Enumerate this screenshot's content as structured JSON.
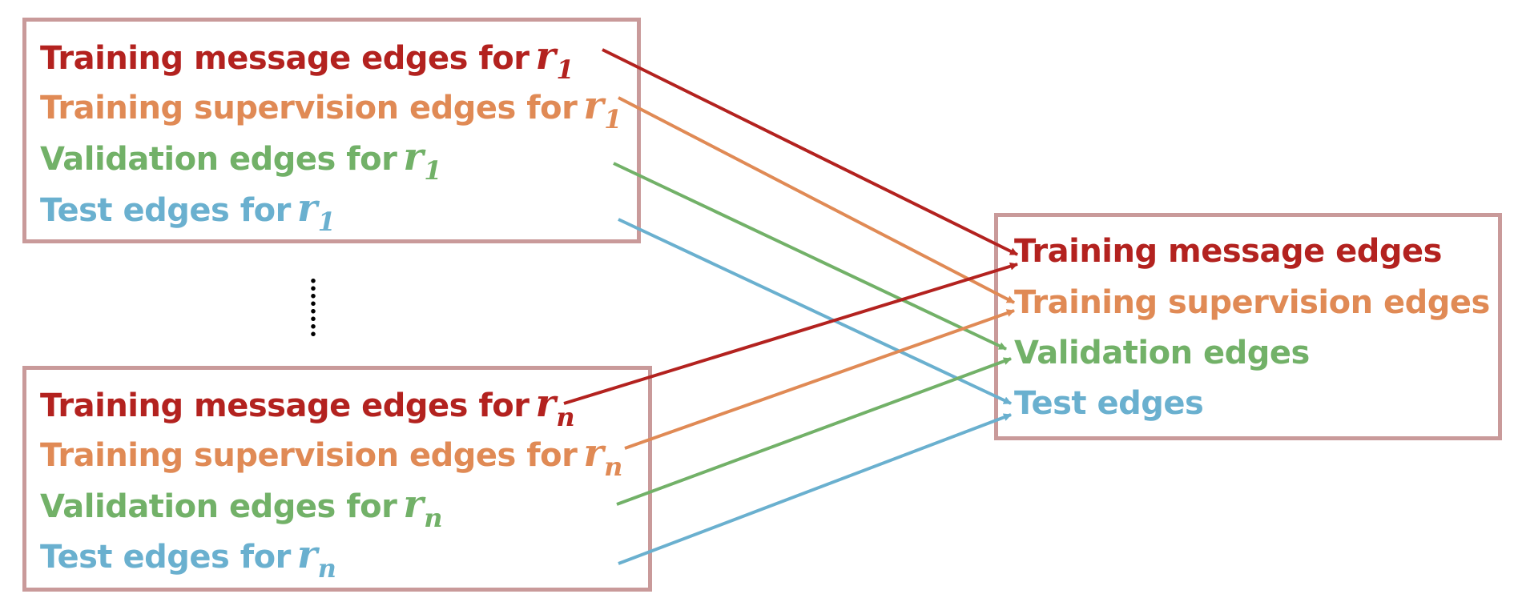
{
  "colors": {
    "message": "#b3221f",
    "supervision": "#e08a55",
    "validation": "#72b168",
    "test": "#6ab0cf",
    "box_border": "#c99a9a"
  },
  "top_group": {
    "relation": "r",
    "relation_subscript": "1",
    "items": [
      {
        "text": "Training message edges for"
      },
      {
        "text": "Training supervision edges for"
      },
      {
        "text": "Validation edges for"
      },
      {
        "text": "Test edges for"
      }
    ]
  },
  "bottom_group": {
    "relation": "r",
    "relation_subscript": "n",
    "items": [
      {
        "text": "Training message edges for"
      },
      {
        "text": "Training supervision edges for"
      },
      {
        "text": "Validation edges for"
      },
      {
        "text": "Test edges for"
      }
    ]
  },
  "merged_group": {
    "items": [
      {
        "text": "Training message edges"
      },
      {
        "text": "Training supervision edges"
      },
      {
        "text": "Validation edges"
      },
      {
        "text": "Test edges"
      }
    ]
  },
  "ellipsis_icon": "vertical-dots"
}
